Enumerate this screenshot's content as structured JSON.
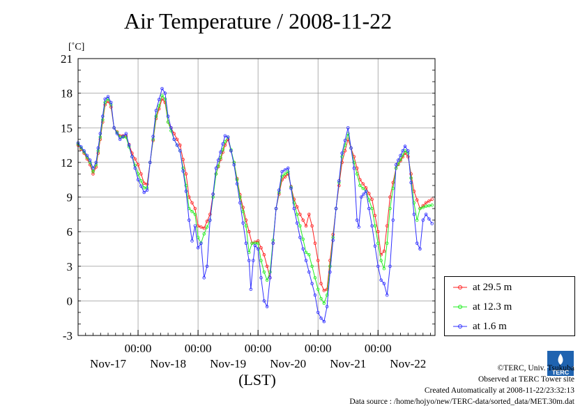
{
  "chart_data": {
    "type": "line",
    "title": "Air Temperature / 2008-11-22",
    "ylabel": "[˚C]",
    "xlabel": "(LST)",
    "ylim": [
      -3,
      21
    ],
    "yticks": [
      "21",
      "18",
      "15",
      "12",
      "9",
      "6",
      "3",
      "0",
      "-3"
    ],
    "xticks_time": [
      "00:00",
      "00:00",
      "00:00",
      "00:00",
      "00:00"
    ],
    "xticks_day": [
      "Nov-17",
      "Nov-18",
      "Nov-19",
      "Nov-20",
      "Nov-21",
      "Nov-22"
    ],
    "grid": true,
    "legend_position": "bottom-right",
    "series": [
      {
        "name": "at 29.5 m",
        "color": "#ff2020",
        "points": [
          [
            16.0,
            13.5
          ],
          [
            16.1,
            12.8
          ],
          [
            16.2,
            11.8
          ],
          [
            16.25,
            11.0
          ],
          [
            16.3,
            11.6
          ],
          [
            16.37,
            14.0
          ],
          [
            16.45,
            17.0
          ],
          [
            16.5,
            17.3
          ],
          [
            16.55,
            16.8
          ],
          [
            16.6,
            15.0
          ],
          [
            16.7,
            14.3
          ],
          [
            16.8,
            14.3
          ],
          [
            16.9,
            12.8
          ],
          [
            17.0,
            11.8
          ],
          [
            17.1,
            10.2
          ],
          [
            17.15,
            10.1
          ],
          [
            17.2,
            12.0
          ],
          [
            17.3,
            15.8
          ],
          [
            17.4,
            17.5
          ],
          [
            17.45,
            17.2
          ],
          [
            17.5,
            15.5
          ],
          [
            17.6,
            14.5
          ],
          [
            17.7,
            13.5
          ],
          [
            17.8,
            11.0
          ],
          [
            17.85,
            9.0
          ],
          [
            17.95,
            8.0
          ],
          [
            18.0,
            6.5
          ],
          [
            18.1,
            6.3
          ],
          [
            18.2,
            7.5
          ],
          [
            18.3,
            11.0
          ],
          [
            18.45,
            13.5
          ],
          [
            18.5,
            14.0
          ],
          [
            18.6,
            12.0
          ],
          [
            18.7,
            9.2
          ],
          [
            18.8,
            7.0
          ],
          [
            18.9,
            5.0
          ],
          [
            19.0,
            5.2
          ],
          [
            19.1,
            4.0
          ],
          [
            19.2,
            2.0
          ],
          [
            19.3,
            8.0
          ],
          [
            19.4,
            10.5
          ],
          [
            19.5,
            11.0
          ],
          [
            19.6,
            8.8
          ],
          [
            19.7,
            7.5
          ],
          [
            19.8,
            6.5
          ],
          [
            19.85,
            7.5
          ],
          [
            19.9,
            6.5
          ],
          [
            19.95,
            5.0
          ],
          [
            20.0,
            3.5
          ],
          [
            20.05,
            1.5
          ],
          [
            20.1,
            0.9
          ],
          [
            20.15,
            1.0
          ],
          [
            20.2,
            3.5
          ],
          [
            20.3,
            8.0
          ],
          [
            20.4,
            12.0
          ],
          [
            20.5,
            14.0
          ],
          [
            20.6,
            12.5
          ],
          [
            20.7,
            10.5
          ],
          [
            20.8,
            9.8
          ],
          [
            20.9,
            8.8
          ],
          [
            21.0,
            6.0
          ],
          [
            21.05,
            4.0
          ],
          [
            21.1,
            4.3
          ],
          [
            21.15,
            6.5
          ],
          [
            21.2,
            9.0
          ],
          [
            21.3,
            11.5
          ],
          [
            21.45,
            12.8
          ],
          [
            21.5,
            12.5
          ],
          [
            21.6,
            9.5
          ],
          [
            21.7,
            8.0
          ],
          [
            21.8,
            8.5
          ],
          [
            21.9,
            8.8
          ]
        ]
      },
      {
        "name": "at 12.3 m",
        "color": "#22ee22",
        "points": [
          [
            16.0,
            13.6
          ],
          [
            16.1,
            12.9
          ],
          [
            16.2,
            12.0
          ],
          [
            16.25,
            11.2
          ],
          [
            16.3,
            11.8
          ],
          [
            16.37,
            14.2
          ],
          [
            16.45,
            17.2
          ],
          [
            16.5,
            17.5
          ],
          [
            16.55,
            17.0
          ],
          [
            16.6,
            15.0
          ],
          [
            16.7,
            14.2
          ],
          [
            16.8,
            14.2
          ],
          [
            16.9,
            12.5
          ],
          [
            17.0,
            11.0
          ],
          [
            17.1,
            9.8
          ],
          [
            17.15,
            9.8
          ],
          [
            17.2,
            12.0
          ],
          [
            17.3,
            16.0
          ],
          [
            17.4,
            17.8
          ],
          [
            17.45,
            17.5
          ],
          [
            17.5,
            15.5
          ],
          [
            17.6,
            14.0
          ],
          [
            17.7,
            13.0
          ],
          [
            17.8,
            10.0
          ],
          [
            17.85,
            8.0
          ],
          [
            17.95,
            7.5
          ],
          [
            18.0,
            5.5
          ],
          [
            18.05,
            5.0
          ],
          [
            18.1,
            5.8
          ],
          [
            18.2,
            7.0
          ],
          [
            18.3,
            11.0
          ],
          [
            18.45,
            13.8
          ],
          [
            18.5,
            14.2
          ],
          [
            18.6,
            12.0
          ],
          [
            18.7,
            9.0
          ],
          [
            18.8,
            6.5
          ],
          [
            18.85,
            4.2
          ],
          [
            18.9,
            5.0
          ],
          [
            19.0,
            5.0
          ],
          [
            19.05,
            3.5
          ],
          [
            19.1,
            2.5
          ],
          [
            19.15,
            1.8
          ],
          [
            19.2,
            2.5
          ],
          [
            19.3,
            8.0
          ],
          [
            19.4,
            10.8
          ],
          [
            19.5,
            11.2
          ],
          [
            19.6,
            8.5
          ],
          [
            19.7,
            6.5
          ],
          [
            19.8,
            4.2
          ],
          [
            19.85,
            4.0
          ],
          [
            19.9,
            3.0
          ],
          [
            19.95,
            2.0
          ],
          [
            20.0,
            1.0
          ],
          [
            20.05,
            0.2
          ],
          [
            20.1,
            -0.2
          ],
          [
            20.15,
            0.5
          ],
          [
            20.2,
            3.0
          ],
          [
            20.3,
            8.0
          ],
          [
            20.4,
            12.5
          ],
          [
            20.5,
            14.5
          ],
          [
            20.6,
            12.0
          ],
          [
            20.7,
            10.0
          ],
          [
            20.8,
            9.5
          ],
          [
            20.9,
            8.0
          ],
          [
            21.0,
            5.0
          ],
          [
            21.05,
            3.5
          ],
          [
            21.1,
            2.8
          ],
          [
            21.15,
            5.0
          ],
          [
            21.2,
            8.0
          ],
          [
            21.3,
            11.5
          ],
          [
            21.45,
            13.0
          ],
          [
            21.5,
            12.8
          ],
          [
            21.6,
            8.5
          ],
          [
            21.65,
            7.0
          ],
          [
            21.7,
            8.0
          ],
          [
            21.8,
            8.2
          ],
          [
            21.9,
            8.3
          ]
        ]
      },
      {
        "name": "at 1.6 m",
        "color": "#3030ff",
        "points": [
          [
            16.0,
            13.7
          ],
          [
            16.1,
            13.0
          ],
          [
            16.2,
            12.2
          ],
          [
            16.25,
            11.5
          ],
          [
            16.3,
            12.0
          ],
          [
            16.37,
            14.5
          ],
          [
            16.45,
            17.5
          ],
          [
            16.5,
            17.7
          ],
          [
            16.55,
            17.2
          ],
          [
            16.6,
            15.0
          ],
          [
            16.7,
            14.0
          ],
          [
            16.8,
            14.5
          ],
          [
            16.9,
            12.5
          ],
          [
            17.0,
            10.5
          ],
          [
            17.1,
            9.4
          ],
          [
            17.15,
            9.6
          ],
          [
            17.2,
            12.0
          ],
          [
            17.3,
            16.5
          ],
          [
            17.4,
            18.4
          ],
          [
            17.45,
            18.0
          ],
          [
            17.5,
            16.0
          ],
          [
            17.6,
            14.0
          ],
          [
            17.7,
            13.0
          ],
          [
            17.8,
            9.5
          ],
          [
            17.85,
            7.0
          ],
          [
            17.9,
            5.2
          ],
          [
            17.95,
            6.5
          ],
          [
            18.0,
            4.6
          ],
          [
            18.05,
            5.0
          ],
          [
            18.1,
            2.0
          ],
          [
            18.15,
            3.0
          ],
          [
            18.2,
            7.0
          ],
          [
            18.3,
            11.5
          ],
          [
            18.45,
            14.3
          ],
          [
            18.5,
            14.2
          ],
          [
            18.6,
            11.8
          ],
          [
            18.7,
            8.5
          ],
          [
            18.8,
            5.0
          ],
          [
            18.85,
            3.5
          ],
          [
            18.88,
            1.0
          ],
          [
            18.92,
            3.5
          ],
          [
            18.95,
            4.8
          ],
          [
            19.0,
            4.5
          ],
          [
            19.05,
            2.0
          ],
          [
            19.1,
            0.0
          ],
          [
            19.15,
            -0.5
          ],
          [
            19.2,
            2.0
          ],
          [
            19.3,
            8.0
          ],
          [
            19.4,
            11.2
          ],
          [
            19.5,
            11.5
          ],
          [
            19.6,
            8.0
          ],
          [
            19.7,
            5.5
          ],
          [
            19.8,
            3.5
          ],
          [
            19.85,
            2.5
          ],
          [
            19.9,
            1.5
          ],
          [
            19.95,
            0.5
          ],
          [
            20.0,
            -1.0
          ],
          [
            20.05,
            -1.5
          ],
          [
            20.1,
            -1.8
          ],
          [
            20.15,
            -0.5
          ],
          [
            20.2,
            2.5
          ],
          [
            20.3,
            8.0
          ],
          [
            20.4,
            12.8
          ],
          [
            20.5,
            15.0
          ],
          [
            20.6,
            11.5
          ],
          [
            20.65,
            7.0
          ],
          [
            20.68,
            6.4
          ],
          [
            20.72,
            9.0
          ],
          [
            20.8,
            9.5
          ],
          [
            20.9,
            6.5
          ],
          [
            21.0,
            3.0
          ],
          [
            21.05,
            1.8
          ],
          [
            21.1,
            1.5
          ],
          [
            21.15,
            0.5
          ],
          [
            21.2,
            3.0
          ],
          [
            21.25,
            7.0
          ],
          [
            21.3,
            11.8
          ],
          [
            21.45,
            13.4
          ],
          [
            21.5,
            13.0
          ],
          [
            21.6,
            7.5
          ],
          [
            21.65,
            5.0
          ],
          [
            21.7,
            4.5
          ],
          [
            21.75,
            7.0
          ],
          [
            21.8,
            7.5
          ],
          [
            21.9,
            6.7
          ]
        ]
      }
    ]
  },
  "credits": {
    "copyright": "©TERC, Univ. Tsukuba",
    "observed": "Observed at TERC Tower site",
    "created": "Created Automatically at 2008-11-22/23:32:13",
    "source": "Data source : /home/hojyo/new/TERC-data/sorted_data/MET.30m.dat"
  },
  "logo": {
    "text": "TERC",
    "color": "#1f63b0"
  }
}
